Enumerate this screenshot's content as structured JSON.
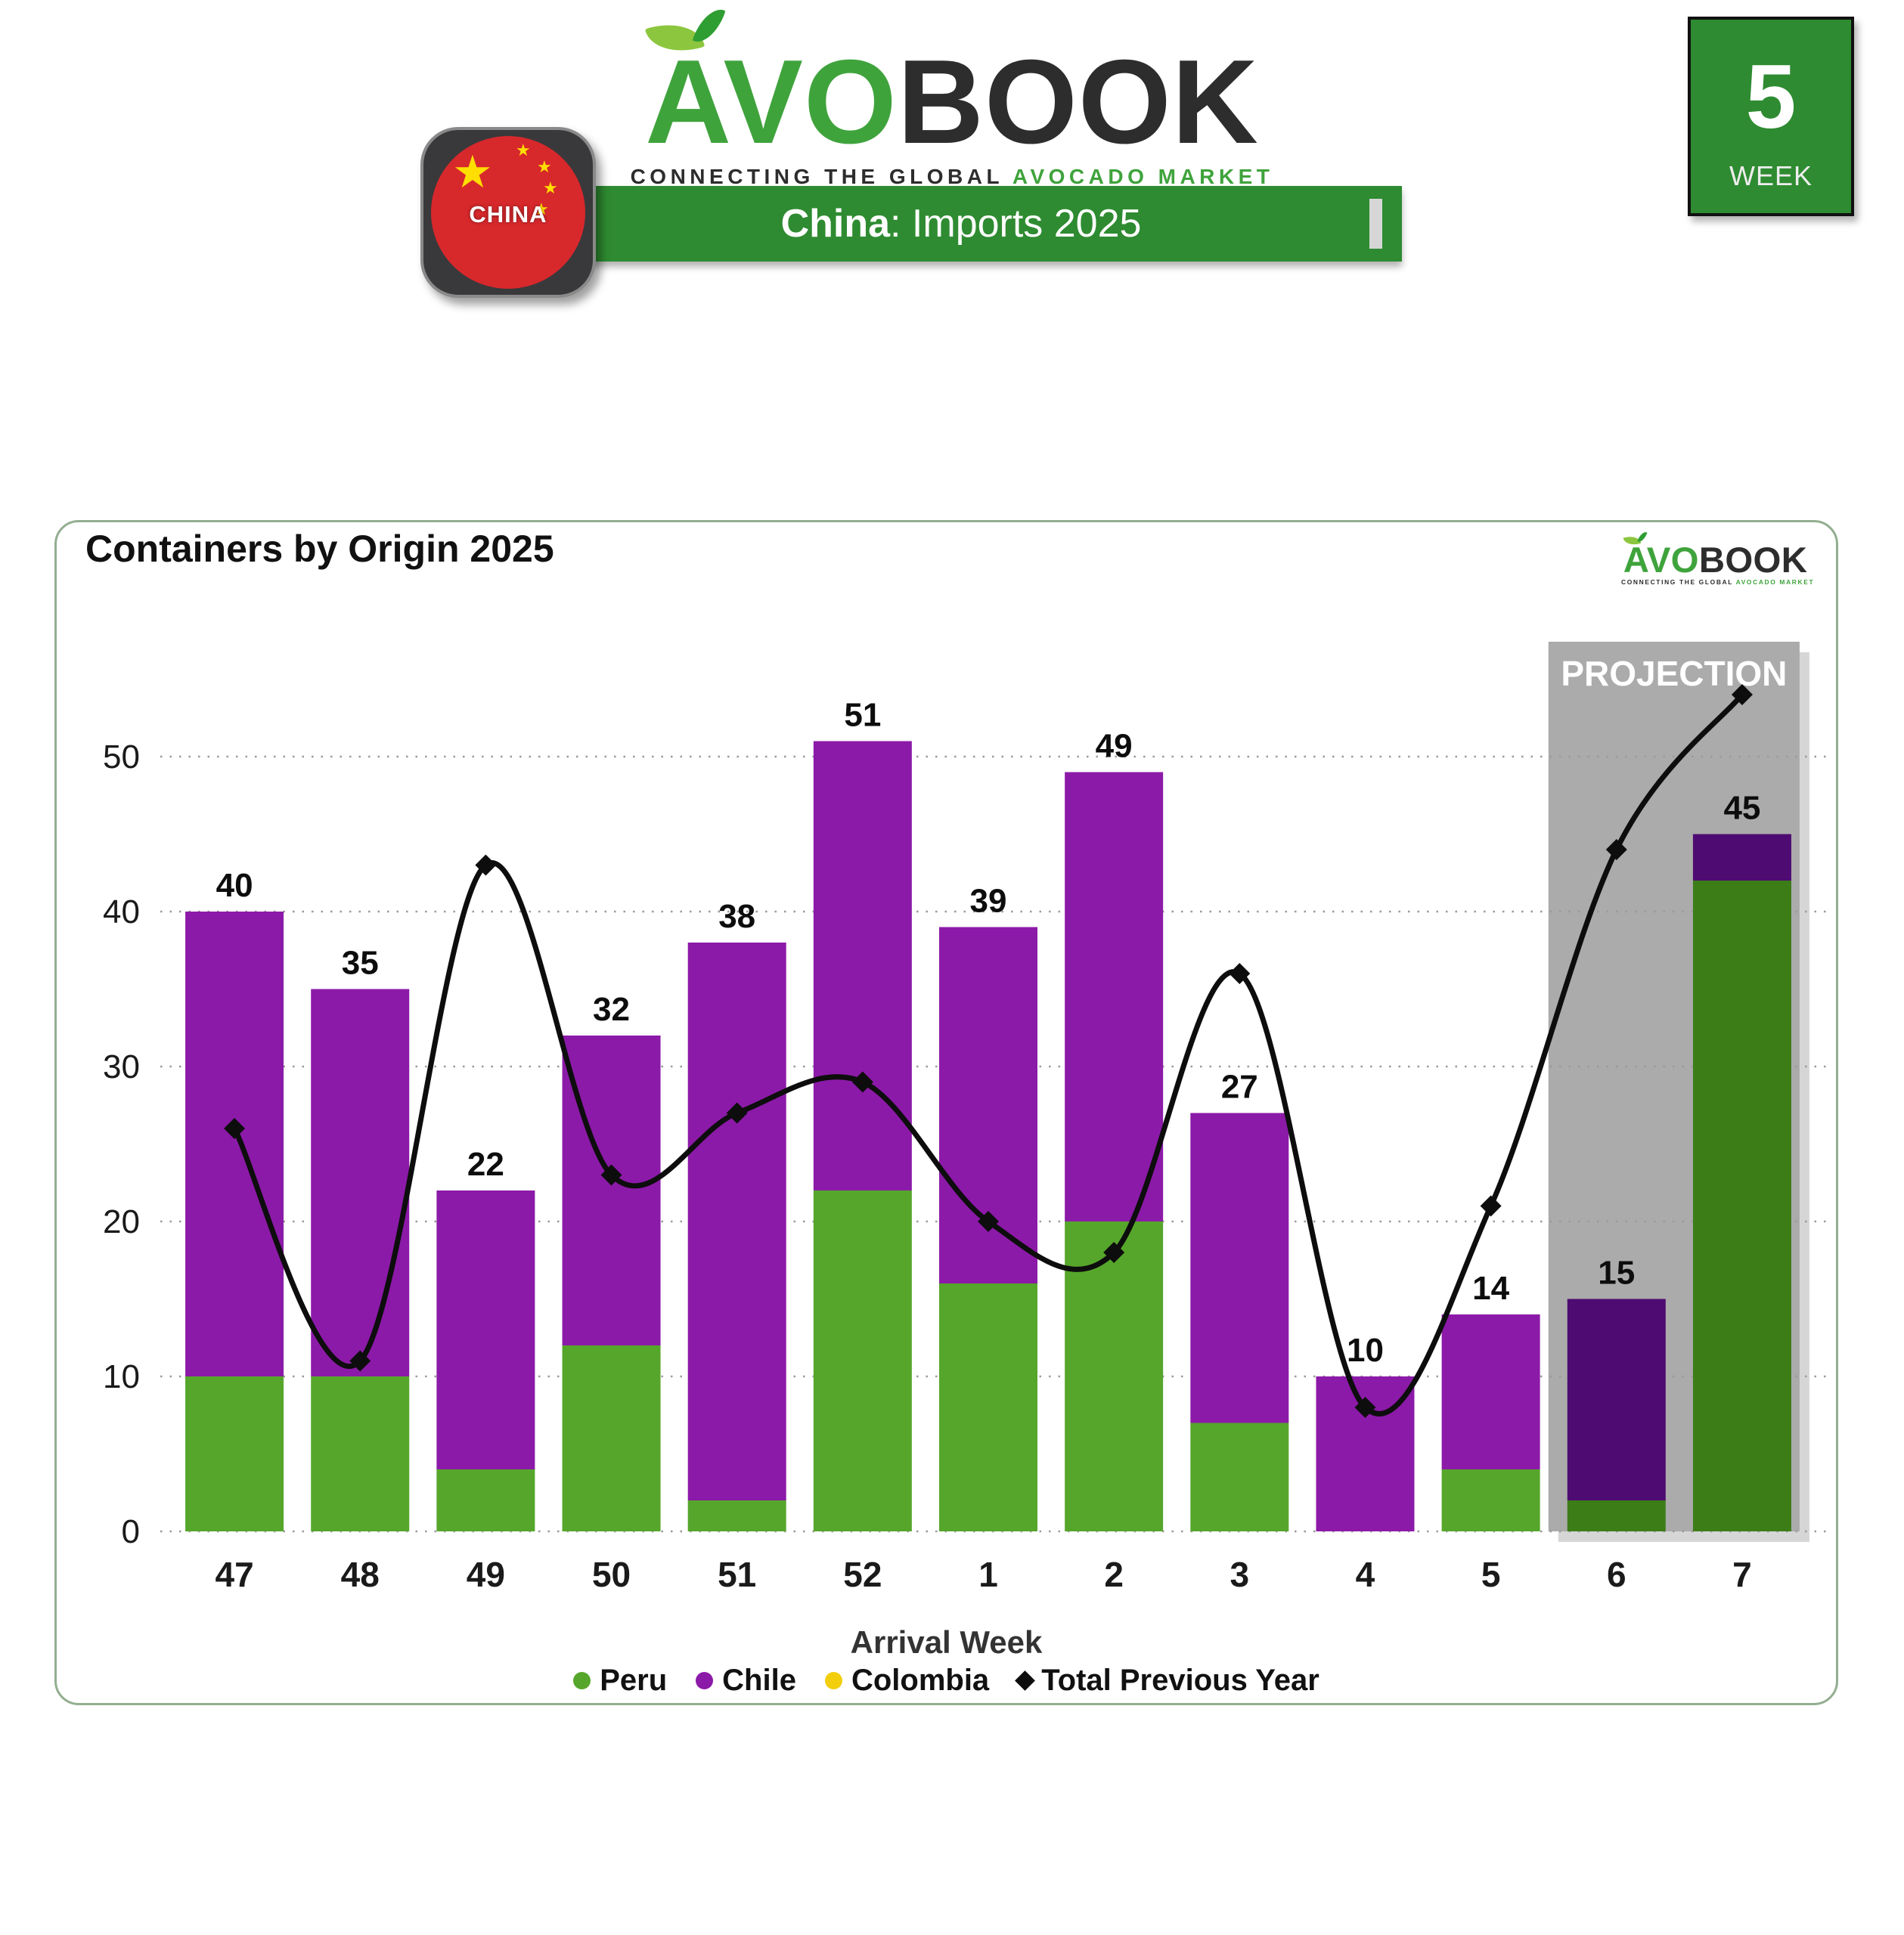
{
  "header": {
    "logo": {
      "avo": "AVO",
      "book": "BOOK",
      "tagline_dark": "CONNECTING THE GLOBAL",
      "tagline_green": "AVOCADO MARKET"
    },
    "flag_label": "CHINA",
    "banner": {
      "country": "China",
      "rest": ": Imports 2025"
    },
    "week_badge": {
      "number": "5",
      "label": "WEEK"
    }
  },
  "chart": {
    "title": "Containers by Origin 2025",
    "projection_label": "PROJECTION",
    "xlabel": "Arrival Week",
    "legend": [
      {
        "label": "Peru",
        "color": "#56A62B",
        "shape": "circle"
      },
      {
        "label": "Chile",
        "color": "#8C1AA8",
        "shape": "circle"
      },
      {
        "label": "Colombia",
        "color": "#F2CE0D",
        "shape": "circle"
      },
      {
        "label": "Total Previous Year",
        "color": "#0D0D0D",
        "shape": "diamond"
      }
    ]
  },
  "chart_data": {
    "type": "bar",
    "subtype": "stacked-bars-with-line",
    "title": "Containers by Origin 2025",
    "xlabel": "Arrival Week",
    "ylabel": "",
    "categories": [
      "47",
      "48",
      "49",
      "50",
      "51",
      "52",
      "1",
      "2",
      "3",
      "4",
      "5",
      "6",
      "7"
    ],
    "series": [
      {
        "name": "Peru",
        "color": "#56A62B",
        "projection_color": "#3C7D18",
        "values": [
          10,
          10,
          4,
          12,
          2,
          22,
          16,
          20,
          7,
          0,
          4,
          2,
          42
        ]
      },
      {
        "name": "Chile",
        "color": "#8C1AA8",
        "projection_color": "#4E0B72",
        "values": [
          30,
          25,
          18,
          20,
          36,
          29,
          23,
          29,
          20,
          10,
          10,
          13,
          3
        ]
      },
      {
        "name": "Colombia",
        "color": "#F2CE0D",
        "projection_color": "#F2CE0D",
        "values": [
          0,
          0,
          0,
          0,
          0,
          0,
          0,
          0,
          0,
          0,
          0,
          0,
          0
        ]
      },
      {
        "name": "Total Previous Year",
        "type": "line",
        "color": "#0D0D0D",
        "values": [
          26,
          11,
          43,
          23,
          27,
          29,
          20,
          18,
          36,
          8,
          21,
          44,
          54
        ]
      }
    ],
    "totals": [
      40,
      35,
      22,
      32,
      38,
      51,
      39,
      49,
      27,
      10,
      14,
      15,
      45
    ],
    "projection_from_index": 11,
    "ylim": [
      0,
      57
    ],
    "yticks": [
      0,
      10,
      20,
      30,
      40,
      50
    ],
    "grid": "dotted-horizontal",
    "legend_position": "bottom",
    "colors": {
      "projection_box": "#ABABAB",
      "projection_box_shadow": "#D6D6D6",
      "banner_green": "#2E8B31",
      "logo_green": "#3FA33C",
      "line": "#0D0D0D"
    }
  }
}
